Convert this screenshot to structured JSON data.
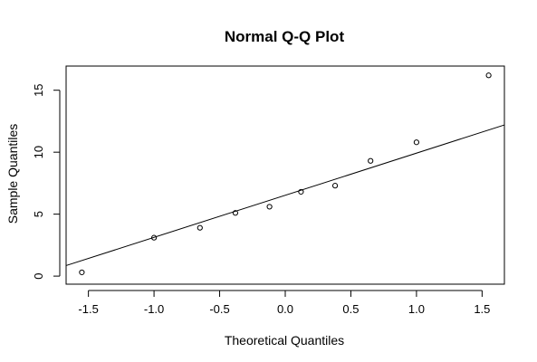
{
  "chart_data": {
    "type": "scatter",
    "title": "Normal Q-Q Plot",
    "xlabel": "Theoretical Quantiles",
    "ylabel": "Sample Quantiles",
    "xlim": [
      -1.67,
      1.67
    ],
    "ylim": [
      -0.65,
      16.95
    ],
    "x_ticks": [
      -1.5,
      -1.0,
      -0.5,
      0.0,
      0.5,
      1.0,
      1.5
    ],
    "x_tick_labels": [
      "-1.5",
      "-1.0",
      "-0.5",
      "0.0",
      "0.5",
      "1.0",
      "1.5"
    ],
    "y_ticks": [
      0,
      5,
      10,
      15
    ],
    "y_tick_labels": [
      "0",
      "5",
      "10",
      "15"
    ],
    "grid": false,
    "legend": "none",
    "points": [
      {
        "x": -1.55,
        "y": 0.3
      },
      {
        "x": -1.0,
        "y": 3.1
      },
      {
        "x": -0.65,
        "y": 3.9
      },
      {
        "x": -0.38,
        "y": 5.1
      },
      {
        "x": -0.12,
        "y": 5.6
      },
      {
        "x": 0.12,
        "y": 6.8
      },
      {
        "x": 0.38,
        "y": 7.3
      },
      {
        "x": 0.65,
        "y": 9.3
      },
      {
        "x": 1.0,
        "y": 10.8
      },
      {
        "x": 1.55,
        "y": 16.2
      }
    ],
    "reference_line": {
      "x1": -1.67,
      "y1": 0.85,
      "x2": 1.67,
      "y2": 12.2
    }
  }
}
